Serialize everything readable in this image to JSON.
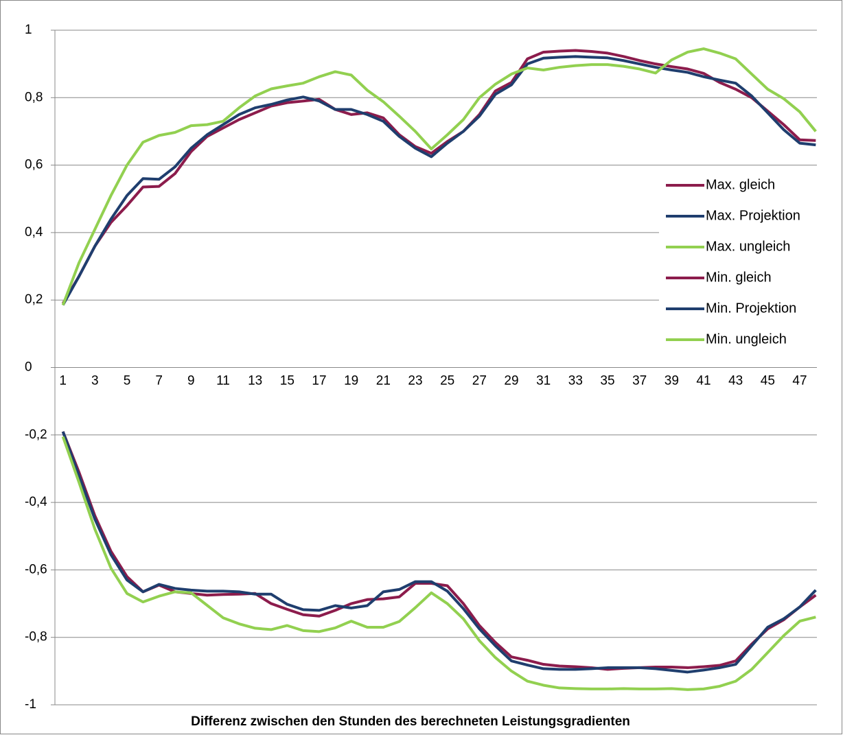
{
  "chart_data": {
    "type": "line",
    "x_label": "Differenz zwischen den Stunden des berechneten Leistungsgradienten",
    "categories": [
      1,
      null,
      3,
      null,
      5,
      null,
      7,
      null,
      9,
      null,
      11,
      null,
      13,
      null,
      15,
      null,
      17,
      null,
      19,
      null,
      21,
      null,
      23,
      null,
      25,
      null,
      27,
      null,
      29,
      null,
      31,
      null,
      33,
      null,
      35,
      null,
      37,
      null,
      39,
      null,
      41,
      null,
      43,
      null,
      45,
      null,
      47,
      null
    ],
    "ylim": [
      -1,
      1
    ],
    "yticks": [
      -1,
      {
        "value": -0.8,
        "label": "-0,8"
      },
      {
        "value": -0.6,
        "label": "-0,6"
      },
      {
        "value": -0.4,
        "label": "-0,4"
      },
      {
        "value": -0.2,
        "label": "-0,2"
      },
      0,
      {
        "value": 0.2,
        "label": "0,2"
      },
      {
        "value": 0.4,
        "label": "0,4"
      },
      {
        "value": 0.6,
        "label": "0,6"
      },
      {
        "value": 0.8,
        "label": "0,8"
      },
      1
    ],
    "grid": true,
    "legend": "right",
    "series": [
      {
        "name": "Max. gleich",
        "color": "#8c1c4c",
        "values": [
          0.19,
          0.27,
          0.36,
          0.43,
          0.48,
          0.535,
          0.537,
          0.575,
          0.64,
          0.685,
          0.71,
          0.735,
          0.755,
          0.775,
          0.785,
          0.79,
          0.795,
          0.765,
          0.75,
          0.755,
          0.74,
          0.69,
          0.655,
          0.635,
          0.67,
          0.7,
          0.75,
          0.82,
          0.845,
          0.915,
          0.935,
          0.938,
          0.94,
          0.937,
          0.932,
          0.922,
          0.91,
          0.9,
          0.892,
          0.885,
          0.872,
          0.845,
          0.825,
          0.8,
          0.76,
          0.72,
          0.675,
          0.673
        ]
      },
      {
        "name": "Max. Projektion",
        "color": "#1f3e6e",
        "values": [
          0.185,
          0.27,
          0.36,
          0.44,
          0.51,
          0.56,
          0.558,
          0.595,
          0.65,
          0.69,
          0.72,
          0.75,
          0.77,
          0.78,
          0.793,
          0.802,
          0.79,
          0.765,
          0.765,
          0.75,
          0.73,
          0.685,
          0.65,
          0.625,
          0.665,
          0.7,
          0.745,
          0.81,
          0.838,
          0.9,
          0.917,
          0.92,
          0.922,
          0.92,
          0.918,
          0.91,
          0.9,
          0.89,
          0.882,
          0.875,
          0.862,
          0.852,
          0.843,
          0.805,
          0.755,
          0.705,
          0.665,
          0.66
        ]
      },
      {
        "name": "Max. ungleich",
        "color": "#92d050",
        "values": [
          0.185,
          0.31,
          0.41,
          0.51,
          0.6,
          0.668,
          0.688,
          0.697,
          0.717,
          0.72,
          0.73,
          0.77,
          0.805,
          0.826,
          0.835,
          0.843,
          0.862,
          0.877,
          0.867,
          0.822,
          0.788,
          0.745,
          0.7,
          0.648,
          0.69,
          0.735,
          0.8,
          0.84,
          0.87,
          0.888,
          0.882,
          0.89,
          0.895,
          0.898,
          0.898,
          0.893,
          0.885,
          0.873,
          0.912,
          0.935,
          0.945,
          0.932,
          0.915,
          0.87,
          0.825,
          0.797,
          0.758,
          0.7
        ]
      },
      {
        "name": "Min. gleich",
        "color": "#8c1c4c",
        "values": [
          -0.19,
          -0.31,
          -0.44,
          -0.545,
          -0.62,
          -0.665,
          -0.645,
          -0.665,
          -0.67,
          -0.675,
          -0.673,
          -0.672,
          -0.67,
          -0.7,
          -0.717,
          -0.733,
          -0.737,
          -0.72,
          -0.7,
          -0.688,
          -0.686,
          -0.68,
          -0.64,
          -0.64,
          -0.647,
          -0.7,
          -0.765,
          -0.815,
          -0.858,
          -0.868,
          -0.88,
          -0.885,
          -0.887,
          -0.89,
          -0.895,
          -0.892,
          -0.89,
          -0.888,
          -0.888,
          -0.89,
          -0.887,
          -0.883,
          -0.87,
          -0.82,
          -0.775,
          -0.748,
          -0.71,
          -0.675
        ]
      },
      {
        "name": "Min. Projektion",
        "color": "#1f3e6e",
        "values": [
          -0.19,
          -0.32,
          -0.45,
          -0.555,
          -0.63,
          -0.665,
          -0.643,
          -0.655,
          -0.66,
          -0.663,
          -0.663,
          -0.665,
          -0.672,
          -0.672,
          -0.702,
          -0.718,
          -0.72,
          -0.706,
          -0.713,
          -0.706,
          -0.665,
          -0.658,
          -0.635,
          -0.635,
          -0.663,
          -0.715,
          -0.775,
          -0.825,
          -0.87,
          -0.882,
          -0.893,
          -0.895,
          -0.895,
          -0.893,
          -0.89,
          -0.89,
          -0.89,
          -0.893,
          -0.898,
          -0.903,
          -0.897,
          -0.89,
          -0.88,
          -0.825,
          -0.77,
          -0.745,
          -0.71,
          -0.66
        ]
      },
      {
        "name": "Min. ungleich",
        "color": "#92d050",
        "values": [
          -0.205,
          -0.34,
          -0.48,
          -0.595,
          -0.67,
          -0.695,
          -0.678,
          -0.665,
          -0.668,
          -0.705,
          -0.742,
          -0.76,
          -0.773,
          -0.777,
          -0.765,
          -0.78,
          -0.783,
          -0.772,
          -0.752,
          -0.77,
          -0.77,
          -0.753,
          -0.712,
          -0.668,
          -0.7,
          -0.745,
          -0.81,
          -0.86,
          -0.9,
          -0.93,
          -0.942,
          -0.95,
          -0.952,
          -0.953,
          -0.953,
          -0.952,
          -0.953,
          -0.953,
          -0.952,
          -0.955,
          -0.953,
          -0.945,
          -0.93,
          -0.895,
          -0.845,
          -0.795,
          -0.752,
          -0.74
        ]
      }
    ]
  }
}
